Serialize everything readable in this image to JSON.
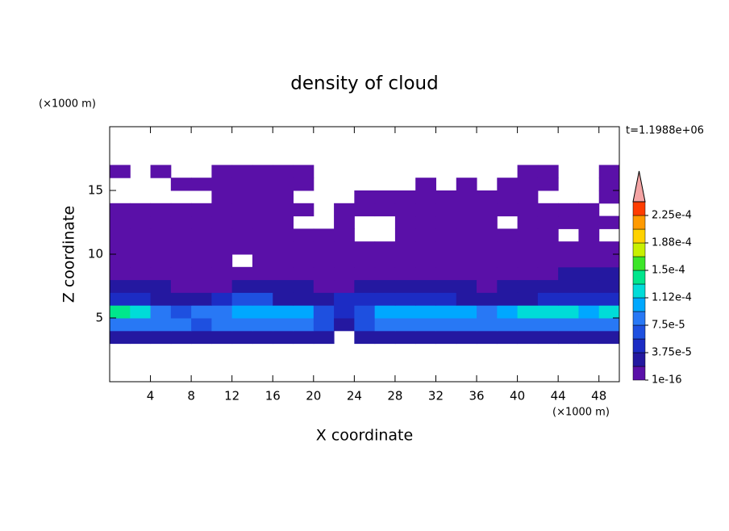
{
  "chart_data": {
    "type": "contour",
    "title": "density of cloud",
    "xlabel": "X coordinate",
    "ylabel": "Z coordinate",
    "xunit": "(×1000 m)",
    "yunit": "(×1000 m)",
    "time_label": "t=1.1988e+06",
    "xlim": [
      0,
      50
    ],
    "ylim": [
      0,
      20
    ],
    "xticks": [
      4,
      8,
      12,
      16,
      20,
      24,
      28,
      32,
      36,
      40,
      44,
      48
    ],
    "yticks": [
      5,
      10,
      15
    ],
    "x": [
      1,
      3,
      5,
      7,
      9,
      11,
      13,
      15,
      17,
      19,
      21,
      23,
      25,
      27,
      29,
      31,
      33,
      35,
      37,
      39,
      41,
      43,
      45,
      47,
      49
    ],
    "y": [
      3.5,
      4.5,
      5.5,
      6.5,
      7.5,
      8.5,
      9.5,
      10.5,
      11.5,
      12.5,
      13.5,
      14.5,
      15.5,
      16.5
    ],
    "z": [
      [
        3e-05,
        3e-05,
        3e-05,
        3e-05,
        3e-05,
        3e-05,
        3e-05,
        3e-05,
        3e-05,
        3e-05,
        3e-05,
        null,
        3e-05,
        3e-05,
        3e-05,
        3e-05,
        3e-05,
        3e-05,
        3e-05,
        3e-05,
        3e-05,
        3e-05,
        3e-05,
        3e-05,
        3e-05
      ],
      [
        9e-05,
        9e-05,
        9e-05,
        9e-05,
        7e-05,
        9e-05,
        9e-05,
        9e-05,
        9e-05,
        9e-05,
        7e-05,
        3e-05,
        7e-05,
        9e-05,
        9e-05,
        9e-05,
        9e-05,
        9e-05,
        9e-05,
        9e-05,
        9e-05,
        9e-05,
        9e-05,
        9e-05,
        9e-05
      ],
      [
        0.000145,
        0.00013,
        9e-05,
        7e-05,
        9e-05,
        9e-05,
        0.00011,
        0.00011,
        0.00011,
        0.00011,
        7e-05,
        5e-05,
        7e-05,
        0.00011,
        0.00011,
        0.00011,
        0.00011,
        0.00011,
        9e-05,
        0.00011,
        0.00013,
        0.00013,
        0.00013,
        0.00011,
        0.00013
      ],
      [
        5e-05,
        5e-05,
        3e-05,
        3e-05,
        3e-05,
        5e-05,
        7e-05,
        7e-05,
        3e-05,
        3e-05,
        3e-05,
        5e-05,
        5e-05,
        5e-05,
        5e-05,
        5e-05,
        5e-05,
        3e-05,
        3e-05,
        3e-05,
        3e-05,
        5e-05,
        5e-05,
        5e-05,
        5e-05
      ],
      [
        3e-05,
        3e-05,
        3e-05,
        1e-05,
        1e-05,
        1e-05,
        3e-05,
        3e-05,
        3e-05,
        3e-05,
        1e-05,
        1e-05,
        3e-05,
        3e-05,
        3e-05,
        3e-05,
        3e-05,
        3e-05,
        1e-05,
        3e-05,
        3e-05,
        3e-05,
        3e-05,
        3e-05,
        3e-05
      ],
      [
        1e-05,
        1e-05,
        1e-05,
        1e-05,
        1e-05,
        1e-05,
        1e-05,
        1e-05,
        1e-05,
        1e-05,
        1e-05,
        1e-05,
        1e-05,
        1e-05,
        1e-05,
        1e-05,
        1e-05,
        1e-05,
        1e-05,
        1e-05,
        1e-05,
        1e-05,
        3e-05,
        3e-05,
        3e-05
      ],
      [
        1e-05,
        1e-05,
        1e-05,
        1e-05,
        1e-05,
        1e-05,
        null,
        1e-05,
        1e-05,
        1e-05,
        1e-05,
        1e-05,
        1e-05,
        1e-05,
        1e-05,
        1e-05,
        1e-05,
        1e-05,
        1e-05,
        1e-05,
        1e-05,
        1e-05,
        1e-05,
        1e-05,
        1e-05
      ],
      [
        1e-05,
        1e-05,
        1e-05,
        1e-05,
        1e-05,
        1e-05,
        1e-05,
        1e-05,
        1e-05,
        1e-05,
        1e-05,
        1e-05,
        1e-05,
        1e-05,
        1e-05,
        1e-05,
        1e-05,
        1e-05,
        1e-05,
        1e-05,
        1e-05,
        1e-05,
        1e-05,
        1e-05,
        1e-05
      ],
      [
        1e-05,
        1e-05,
        1e-05,
        1e-05,
        1e-05,
        1e-05,
        1e-05,
        1e-05,
        1e-05,
        1e-05,
        1e-05,
        1e-05,
        null,
        null,
        1e-05,
        1e-05,
        1e-05,
        1e-05,
        1e-05,
        1e-05,
        1e-05,
        1e-05,
        null,
        1e-05,
        null
      ],
      [
        1e-05,
        1e-05,
        1e-05,
        1e-05,
        1e-05,
        1e-05,
        1e-05,
        1e-05,
        1e-05,
        null,
        null,
        1e-05,
        null,
        null,
        1e-05,
        1e-05,
        1e-05,
        1e-05,
        1e-05,
        null,
        1e-05,
        1e-05,
        1e-05,
        1e-05,
        1e-05
      ],
      [
        1e-05,
        1e-05,
        1e-05,
        1e-05,
        1e-05,
        1e-05,
        1e-05,
        1e-05,
        1e-05,
        1e-05,
        null,
        1e-05,
        1e-05,
        1e-05,
        1e-05,
        1e-05,
        1e-05,
        1e-05,
        1e-05,
        1e-05,
        1e-05,
        1e-05,
        1e-05,
        1e-05,
        null
      ],
      [
        null,
        null,
        null,
        null,
        null,
        1e-05,
        1e-05,
        1e-05,
        1e-05,
        null,
        null,
        null,
        1e-05,
        1e-05,
        1e-05,
        1e-05,
        1e-05,
        1e-05,
        1e-05,
        1e-05,
        1e-05,
        null,
        null,
        null,
        1e-05
      ],
      [
        null,
        null,
        null,
        1e-05,
        1e-05,
        1e-05,
        1e-05,
        1e-05,
        1e-05,
        1e-05,
        null,
        null,
        null,
        null,
        null,
        1e-05,
        null,
        1e-05,
        null,
        1e-05,
        1e-05,
        1e-05,
        null,
        null,
        1e-05
      ],
      [
        1e-05,
        null,
        1e-05,
        null,
        null,
        1e-05,
        1e-05,
        1e-05,
        1e-05,
        1e-05,
        null,
        null,
        null,
        null,
        null,
        null,
        null,
        null,
        null,
        null,
        1e-05,
        1e-05,
        null,
        null,
        1e-05
      ]
    ],
    "colorbar": {
      "ticks": [
        {
          "value": 1e-16,
          "label": "1e-16"
        },
        {
          "value": 3.75e-05,
          "label": "3.75e-5"
        },
        {
          "value": 7.5e-05,
          "label": "7.5e-5"
        },
        {
          "value": 0.000112,
          "label": "1.12e-4"
        },
        {
          "value": 0.00015,
          "label": "1.5e-4"
        },
        {
          "value": 0.000188,
          "label": "1.88e-4"
        },
        {
          "value": 0.000225,
          "label": "2.25e-4"
        }
      ],
      "colors": [
        "#5a10a8",
        "#2418a0",
        "#1c2cc4",
        "#1e50e0",
        "#2878f5",
        "#00a8ff",
        "#00dcd8",
        "#00e68c",
        "#3ce628",
        "#c8f000",
        "#ffd200",
        "#ff9a00",
        "#ff3c00"
      ],
      "over_color": "#f4a4a4"
    }
  }
}
